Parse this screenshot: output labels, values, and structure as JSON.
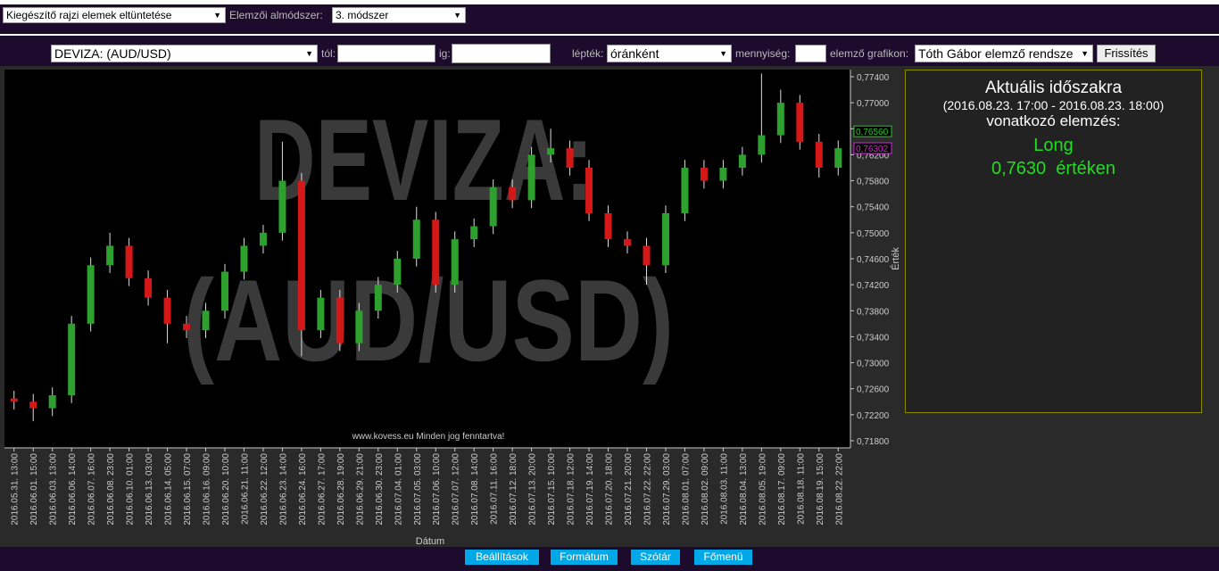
{
  "toolbar": {
    "overlay_select": "Kiegészítő rajzi elemek eltüntetése",
    "submethod_label": "Elemzői almódszer:",
    "submethod_select": "3. módszer"
  },
  "filters": {
    "instrument": "DEVIZA: (AUD/USD)",
    "from_label": "tól:",
    "to_label": "ig:",
    "scale_label": "lépték:",
    "scale": "óránként",
    "quantity_label": "mennyiség:",
    "chart_label": "elemző grafikon:",
    "chart_select": "Tóth Gábor elemző rendsze",
    "refresh": "Frissítés"
  },
  "chart_data": {
    "type": "candlestick",
    "watermark": [
      "DEVIZA:",
      "(AUD/USD)"
    ],
    "copyright": "www.kovess.eu Minden jog fenntartva!",
    "x_title": "Dátum",
    "y_title": "Érték",
    "up_color": "#2ea02e",
    "down_color": "#d41818",
    "categories": [
      "2016.05.31. 13:00",
      "2016.06.01. 15:00",
      "2016.06.03. 13:00",
      "2016.06.06. 14:00",
      "2016.06.07. 16:00",
      "2016.06.08. 23:00",
      "2016.06.10. 01:00",
      "2016.06.13. 03:00",
      "2016.06.14. 05:00",
      "2016.06.15. 07:00",
      "2016.06.16. 09:00",
      "2016.06.20. 10:00",
      "2016.06.21. 11:00",
      "2016.06.22. 12:00",
      "2016.06.23. 14:00",
      "2016.06.24. 16:00",
      "2016.06.27. 17:00",
      "2016.06.28. 19:00",
      "2016.06.29. 21:00",
      "2016.06.30. 23:00",
      "2016.07.04. 01:00",
      "2016.07.05. 03:00",
      "2016.07.06. 10:00",
      "2016.07.07. 12:00",
      "2016.07.08. 14:00",
      "2016.07.11. 16:00",
      "2016.07.12. 18:00",
      "2016.07.13. 20:00",
      "2016.07.15. 10:00",
      "2016.07.18. 12:00",
      "2016.07.19. 14:00",
      "2016.07.20. 18:00",
      "2016.07.21. 20:00",
      "2016.07.22. 22:00",
      "2016.07.29. 03:00",
      "2016.08.01. 07:00",
      "2016.08.02. 09:00",
      "2016.08.03. 11:00",
      "2016.08.04. 13:00",
      "2016.08.05. 19:00",
      "2016.08.17. 09:00",
      "2016.08.18. 11:00",
      "2016.08.19. 15:00",
      "2016.08.22. 22:00"
    ],
    "open": [
      0.7245,
      0.724,
      0.723,
      0.725,
      0.736,
      0.745,
      0.748,
      0.743,
      0.74,
      0.736,
      0.735,
      0.738,
      0.744,
      0.748,
      0.75,
      0.758,
      0.735,
      0.74,
      0.733,
      0.738,
      0.742,
      0.746,
      0.752,
      0.742,
      0.749,
      0.751,
      0.757,
      0.755,
      0.762,
      0.763,
      0.76,
      0.753,
      0.749,
      0.748,
      0.745,
      0.753,
      0.76,
      0.758,
      0.76,
      0.762,
      0.765,
      0.77,
      0.764,
      0.76
    ],
    "high": [
      0.7257,
      0.7252,
      0.7262,
      0.7372,
      0.7462,
      0.75,
      0.7492,
      0.7442,
      0.7412,
      0.7372,
      0.7392,
      0.7452,
      0.7492,
      0.7512,
      0.764,
      0.7592,
      0.7412,
      0.7412,
      0.7392,
      0.7432,
      0.7472,
      0.754,
      0.7532,
      0.7502,
      0.7522,
      0.7582,
      0.7582,
      0.7632,
      0.766,
      0.7642,
      0.7612,
      0.7542,
      0.7502,
      0.7492,
      0.7542,
      0.7612,
      0.7612,
      0.7612,
      0.7632,
      0.7745,
      0.772,
      0.7712,
      0.7652,
      0.7642
    ],
    "low": [
      0.7228,
      0.721,
      0.7218,
      0.7238,
      0.7348,
      0.7438,
      0.7418,
      0.7388,
      0.733,
      0.7338,
      0.7338,
      0.7368,
      0.7428,
      0.7468,
      0.7488,
      0.731,
      0.7338,
      0.7318,
      0.7318,
      0.7368,
      0.7408,
      0.7448,
      0.7408,
      0.7408,
      0.7478,
      0.7498,
      0.7538,
      0.7538,
      0.7608,
      0.7588,
      0.7518,
      0.7478,
      0.7468,
      0.742,
      0.7438,
      0.7518,
      0.7568,
      0.7568,
      0.7588,
      0.7608,
      0.7638,
      0.7628,
      0.7585,
      0.7588
    ],
    "close": [
      0.724,
      0.723,
      0.725,
      0.736,
      0.745,
      0.748,
      0.743,
      0.74,
      0.736,
      0.735,
      0.738,
      0.744,
      0.748,
      0.75,
      0.758,
      0.735,
      0.74,
      0.733,
      0.738,
      0.742,
      0.746,
      0.752,
      0.742,
      0.749,
      0.751,
      0.757,
      0.755,
      0.762,
      0.763,
      0.76,
      0.753,
      0.749,
      0.748,
      0.745,
      0.753,
      0.76,
      0.758,
      0.76,
      0.762,
      0.765,
      0.77,
      0.764,
      0.76,
      0.763
    ],
    "ylim": [
      0.7169,
      0.7751
    ],
    "yticks": [
      {
        "value": 0.774,
        "label": "0,77400"
      },
      {
        "value": 0.77,
        "label": "0,77000"
      },
      {
        "value": 0.766,
        "label": "0,76600"
      },
      {
        "value": 0.762,
        "label": "0,76200"
      },
      {
        "value": 0.758,
        "label": "0,75800"
      },
      {
        "value": 0.754,
        "label": "0,75400"
      },
      {
        "value": 0.75,
        "label": "0,75000"
      },
      {
        "value": 0.746,
        "label": "0,74600"
      },
      {
        "value": 0.742,
        "label": "0,74200"
      },
      {
        "value": 0.738,
        "label": "0,73800"
      },
      {
        "value": 0.734,
        "label": "0,73400"
      },
      {
        "value": 0.73,
        "label": "0,73000"
      },
      {
        "value": 0.726,
        "label": "0,72600"
      },
      {
        "value": 0.722,
        "label": "0,72200"
      },
      {
        "value": 0.718,
        "label": "0,71800"
      }
    ],
    "markers": [
      {
        "value": 0.7656,
        "label": "0,76560",
        "color": "#22cc22"
      },
      {
        "value": 0.76302,
        "label": "0,76302",
        "color": "#dd22dd"
      }
    ]
  },
  "analysis": {
    "title": "Aktuális időszakra",
    "period": "(2016.08.23. 17:00 - 2016.08.23. 18:00)",
    "subtitle": "vonatkozó elemzés:",
    "signal": "Long",
    "level": "0,7630  értéken"
  },
  "footer": {
    "buttons": [
      "Beállítások",
      "Formátum",
      "Szótár",
      "Főmenü"
    ]
  }
}
